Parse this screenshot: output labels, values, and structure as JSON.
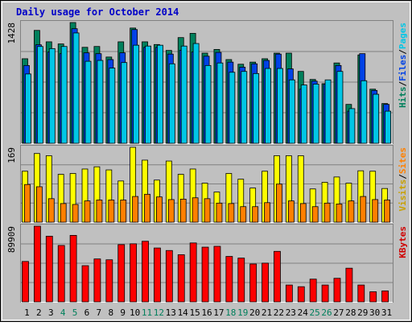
{
  "chart_data": {
    "type": "bar",
    "title": "Daily usage for October 2014",
    "categories": [
      "1",
      "2",
      "3",
      "4",
      "5",
      "6",
      "7",
      "8",
      "9",
      "10",
      "11",
      "12",
      "13",
      "14",
      "15",
      "16",
      "17",
      "18",
      "19",
      "20",
      "21",
      "22",
      "23",
      "24",
      "25",
      "26",
      "27",
      "28",
      "29",
      "30",
      "31"
    ],
    "weekend_days": [
      "4",
      "5",
      "11",
      "12",
      "18",
      "19",
      "25",
      "26"
    ],
    "panels": [
      {
        "id": "top",
        "max_label": "1428",
        "ymax": 1428,
        "legend": [
          {
            "text": "Hits",
            "color": "#00805c"
          },
          {
            "text": "/",
            "color": "#000000"
          },
          {
            "text": "Files",
            "color": "#0042e6"
          },
          {
            "text": "/",
            "color": "#000000"
          },
          {
            "text": "Pages",
            "color": "#00c6e6"
          }
        ],
        "series": [
          {
            "name": "Hits",
            "color": "#00805c",
            "values": [
              1000,
              1335,
              1200,
              1175,
              1428,
              1135,
              1145,
              1020,
              1200,
              1363,
              1200,
              1168,
              1098,
              1250,
              1300,
              1066,
              1110,
              990,
              935,
              960,
              1000,
              1066,
              1066,
              850,
              755,
              705,
              950,
              460,
              1045,
              640,
              470
            ]
          },
          {
            "name": "Files",
            "color": "#0042e6",
            "values": [
              920,
              1165,
              1080,
              1060,
              1355,
              1070,
              1060,
              990,
              1070,
              1345,
              1135,
              1135,
              1055,
              1100,
              1080,
              1030,
              1075,
              960,
              900,
              940,
              980,
              1055,
              880,
              640,
              735,
              700,
              920,
              380,
              1060,
              625,
              460
            ]
          },
          {
            "name": "Pages",
            "color": "#00c6e6",
            "values": [
              820,
              1145,
              1120,
              1145,
              1305,
              970,
              980,
              890,
              955,
              1160,
              1150,
              1160,
              940,
              1150,
              1180,
              920,
              950,
              840,
              850,
              825,
              885,
              885,
              750,
              690,
              700,
              750,
              850,
              410,
              740,
              580,
              380
            ]
          }
        ]
      },
      {
        "id": "middle",
        "max_label": "169",
        "ymax": 169,
        "legend": [
          {
            "text": "Visits",
            "color": "#c8a000"
          },
          {
            "text": "/",
            "color": "#000000"
          },
          {
            "text": "Sites",
            "color": "#ff8000"
          }
        ],
        "series": [
          {
            "name": "Visits",
            "color": "#ffff00",
            "values": [
              115,
              155,
              150,
              108,
              110,
              120,
              125,
              118,
              93,
              169,
              140,
              95,
              138,
              108,
              120,
              88,
              68,
              110,
              97,
              77,
              115,
              150,
              150,
              150,
              75,
              90,
              102,
              88,
              116,
              115,
              76
            ]
          },
          {
            "name": "Sites",
            "color": "#ff8000",
            "values": [
              85,
              80,
              53,
              42,
              40,
              48,
              50,
              50,
              50,
              58,
              63,
              57,
              51,
              52,
              55,
              53,
              43,
              42,
              35,
              35,
              44,
              86,
              48,
              42,
              35,
              43,
              41,
              48,
              58,
              51,
              50
            ]
          }
        ]
      },
      {
        "id": "bottom",
        "max_label": "89909",
        "ymax": 89909,
        "legend": [
          {
            "text": "KBytes",
            "color": "#d00000"
          }
        ],
        "series": [
          {
            "name": "KBytes",
            "color": "#ff0000",
            "values": [
              48000,
              89909,
              78000,
              67000,
              79000,
              43000,
              51000,
              50000,
              68000,
              69000,
              72000,
              64000,
              61000,
              56000,
              70000,
              65000,
              66000,
              54000,
              52000,
              45000,
              46000,
              60000,
              20000,
              18000,
              27000,
              20000,
              28000,
              40000,
              20000,
              12000,
              13000
            ]
          }
        ]
      }
    ],
    "grid": true
  }
}
